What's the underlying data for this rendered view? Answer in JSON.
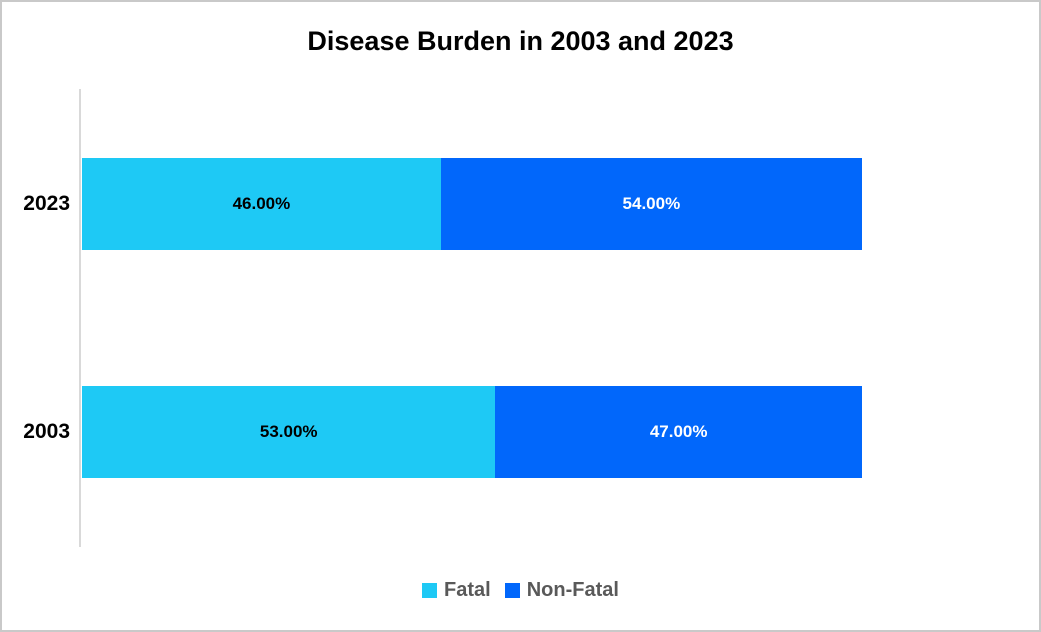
{
  "chart_data": {
    "type": "bar",
    "orientation": "horizontal",
    "stacked": true,
    "title": "Disease Burden in 2003 and 2023",
    "categories": [
      "2023",
      "2003"
    ],
    "series": [
      {
        "name": "Fatal",
        "color": "#1ec9f5",
        "values": [
          46,
          53
        ]
      },
      {
        "name": "Non-Fatal",
        "color": "#0167fb",
        "values": [
          54,
          47
        ]
      }
    ],
    "data_labels": [
      [
        "46.00%",
        "54.00%"
      ],
      [
        "53.00%",
        "47.00%"
      ]
    ],
    "xlim": [
      0,
      100
    ],
    "grid": false,
    "legend_position": "bottom",
    "axis_line_color": "#d9d9d9",
    "data_label_colors": {
      "fatal": "#000000",
      "non_fatal": "#ffffff"
    },
    "legend_text_color": "#595959",
    "background_color": "#ffffff",
    "border_color": "#c9c9c9"
  }
}
